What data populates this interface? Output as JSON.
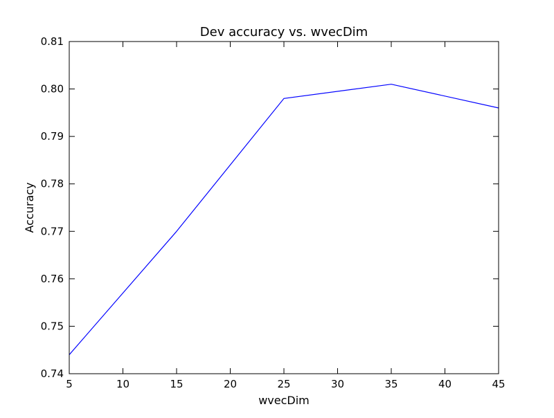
{
  "chart_data": {
    "type": "line",
    "title": "Dev accuracy vs. wvecDim",
    "xlabel": "wvecDim",
    "ylabel": "Accuracy",
    "x": [
      5,
      15,
      25,
      35,
      45
    ],
    "series": [
      {
        "values": [
          0.744,
          0.77,
          0.798,
          0.801,
          0.796
        ],
        "color": "#0000ff"
      }
    ],
    "xlim": [
      5,
      45
    ],
    "ylim": [
      0.74,
      0.81
    ],
    "xticks": [
      "5",
      "10",
      "15",
      "20",
      "25",
      "30",
      "35",
      "40",
      "45"
    ],
    "yticks": [
      "0.74",
      "0.75",
      "0.76",
      "0.77",
      "0.78",
      "0.79",
      "0.80",
      "0.81"
    ],
    "grid": false,
    "legend": "none"
  }
}
